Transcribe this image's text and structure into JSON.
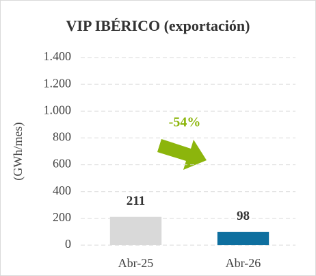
{
  "chart_data": {
    "type": "bar",
    "title": "VIP IBÉRICO (exportación)",
    "y_label": "(GWh/mes)",
    "categories": [
      "Abr-25",
      "Abr-26"
    ],
    "values": [
      211,
      98
    ],
    "colors": [
      "#d9d9d9",
      "#0e6f9f"
    ],
    "ylim": [
      0,
      1400
    ],
    "yticks": [
      0,
      200,
      400,
      600,
      800,
      {
        "value": 1000,
        "label": "1.000"
      },
      {
        "value": 1200,
        "label": "1.200"
      },
      {
        "value": 1400,
        "label": "1.400"
      }
    ],
    "grid": true,
    "annotation": "-54%",
    "annotation_color": "#8cb50c"
  }
}
